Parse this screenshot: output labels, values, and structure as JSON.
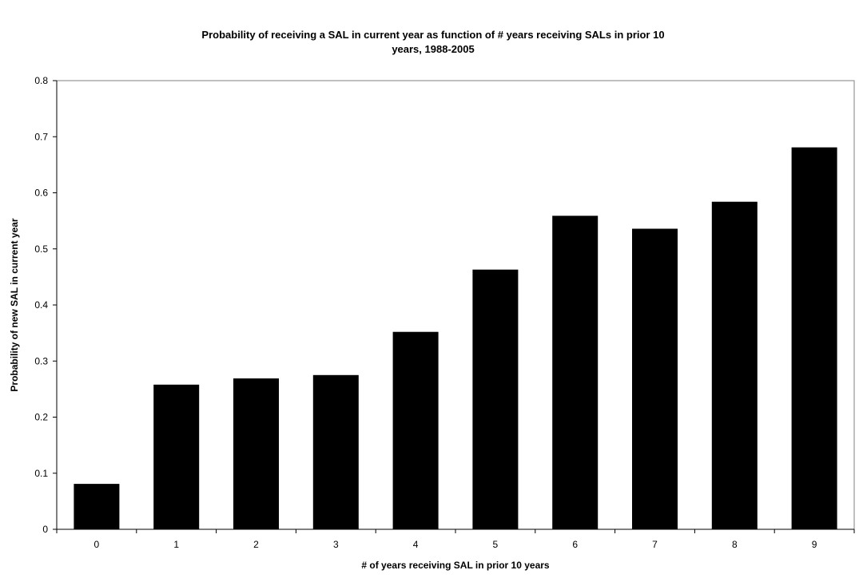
{
  "chart_data": {
    "type": "bar",
    "title": "Probability of receiving a SAL in current year as function of # years receiving SALs  in prior 10 years, 1988-2005",
    "title_lines": [
      "Probability of receiving a SAL in current year as function of # years receiving SALs  in prior 10",
      "years, 1988-2005"
    ],
    "xlabel": "# of years receiving SAL in prior 10 years",
    "ylabel": "Probability of new SAL in current year",
    "categories": [
      "0",
      "1",
      "2",
      "3",
      "4",
      "5",
      "6",
      "7",
      "8",
      "9"
    ],
    "values": [
      0.081,
      0.258,
      0.269,
      0.275,
      0.352,
      0.463,
      0.559,
      0.536,
      0.584,
      0.681
    ],
    "ylim": [
      0,
      0.8
    ],
    "yticks": [
      "0",
      "0.1",
      "0.2",
      "0.3",
      "0.4",
      "0.5",
      "0.6",
      "0.7",
      "0.8"
    ],
    "grid": false,
    "legend": "none",
    "colors": {
      "bar": "#000000",
      "axis": "#000000",
      "plot_border": "#808080",
      "background": "#ffffff"
    }
  }
}
